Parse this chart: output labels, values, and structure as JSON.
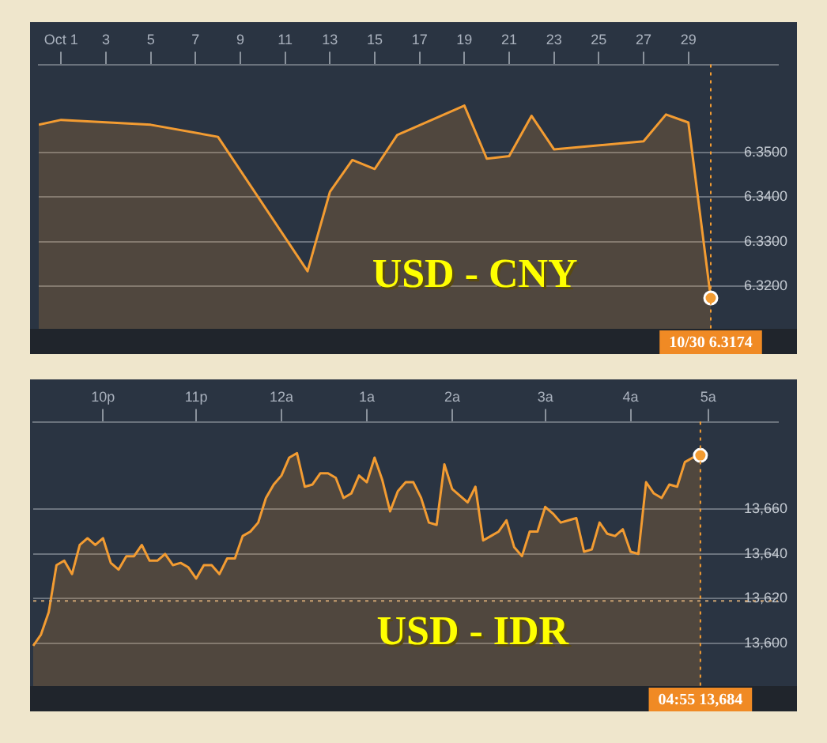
{
  "chart_data": [
    {
      "type": "area",
      "title": "USD - CNY",
      "color": "#f39c32",
      "x": [
        0,
        1,
        5,
        8,
        12,
        13,
        14,
        15,
        16,
        19,
        20,
        21,
        22,
        23,
        27,
        28,
        29,
        30
      ],
      "values": [
        6.3562,
        6.3573,
        6.3562,
        6.3535,
        6.3234,
        6.3412,
        6.3483,
        6.3463,
        6.3539,
        6.3605,
        6.3486,
        6.3492,
        6.3582,
        6.3507,
        6.3525,
        6.3585,
        6.3567,
        6.3174
      ],
      "xlim": [
        0,
        33
      ],
      "xticks": [
        {
          "value": 1,
          "label": "Oct 1"
        },
        3,
        5,
        7,
        9,
        11,
        13,
        15,
        17,
        19,
        21,
        23,
        25,
        27,
        29
      ],
      "ylim": [
        6.3105,
        6.3697
      ],
      "yticks": [
        {
          "value": 6.32,
          "label": "6.3200"
        },
        {
          "value": 6.33,
          "label": "6.3300"
        },
        {
          "value": 6.34,
          "label": "6.3400"
        },
        {
          "value": 6.35,
          "label": "6.3500"
        }
      ],
      "grid": "y",
      "ref_lines": [
        {
          "axis": "x",
          "value": 30,
          "color": "#f39c32",
          "line_style": "dotted"
        }
      ],
      "annotations": [
        "10/30 6.3174"
      ]
    },
    {
      "type": "area",
      "title": "USD - IDR",
      "color": "#f39c32",
      "categories": [
        null,
        null,
        null,
        null,
        null,
        null,
        null,
        null,
        null,
        "10p",
        null,
        null,
        null,
        null,
        null,
        null,
        null,
        null,
        null,
        null,
        null,
        "11p",
        null,
        null,
        null,
        null,
        null,
        null,
        null,
        null,
        null,
        null,
        "12a",
        null,
        null,
        null,
        null,
        null,
        null,
        null,
        null,
        null,
        null,
        "1a",
        null,
        null,
        null,
        null,
        null,
        null,
        null,
        null,
        null,
        null,
        "2a",
        null,
        null,
        null,
        null,
        null,
        null,
        null,
        null,
        null,
        null,
        null,
        "3a",
        null,
        null,
        null,
        null,
        null,
        null,
        null,
        null,
        null,
        null,
        "4a",
        null,
        null,
        null,
        null,
        null,
        null,
        null,
        null,
        null,
        "5a",
        null,
        null,
        null,
        null,
        null,
        null,
        null,
        null,
        null
      ],
      "values": [
        13599,
        13604,
        13614,
        13635,
        13637,
        13631,
        13644,
        13647,
        13644,
        13647,
        13636,
        13633,
        13639,
        13639,
        13644,
        13637,
        13637,
        13640,
        13635,
        13636,
        13634,
        13629,
        13635,
        13635,
        13631,
        13638,
        13638,
        13648,
        13650,
        13654,
        13665,
        13671,
        13675,
        13683,
        13685,
        13670,
        13671,
        13676,
        13676,
        13674,
        13665,
        13667,
        13675,
        13672,
        13683,
        13673,
        13659,
        13668,
        13672,
        13672,
        13665,
        13654,
        13653,
        13680,
        13669,
        13666,
        13663,
        13670,
        13646,
        13648,
        13650,
        13655,
        13643,
        13639,
        13650,
        13650,
        13661,
        13658,
        13654,
        13655,
        13656,
        13641,
        13642,
        13654,
        13649,
        13648,
        13651,
        13641,
        13640,
        13672,
        13667,
        13665,
        13671,
        13670,
        13681,
        13683,
        13684,
        null,
        null,
        null,
        null,
        null,
        null,
        null,
        null,
        null,
        null
      ],
      "ylim": [
        13581,
        13699
      ],
      "yticks": [
        {
          "value": 13600,
          "label": "13,600"
        },
        {
          "value": 13620,
          "label": "13,620"
        },
        {
          "value": 13640,
          "label": "13,640"
        },
        {
          "value": 13660,
          "label": "13,660"
        }
      ],
      "grid": "y",
      "ref_lines": [
        {
          "axis": "y",
          "value": 13619,
          "color": "#c8a070",
          "line_style": "dotted"
        }
      ],
      "annotations": [
        "04:55 13,684"
      ]
    }
  ]
}
